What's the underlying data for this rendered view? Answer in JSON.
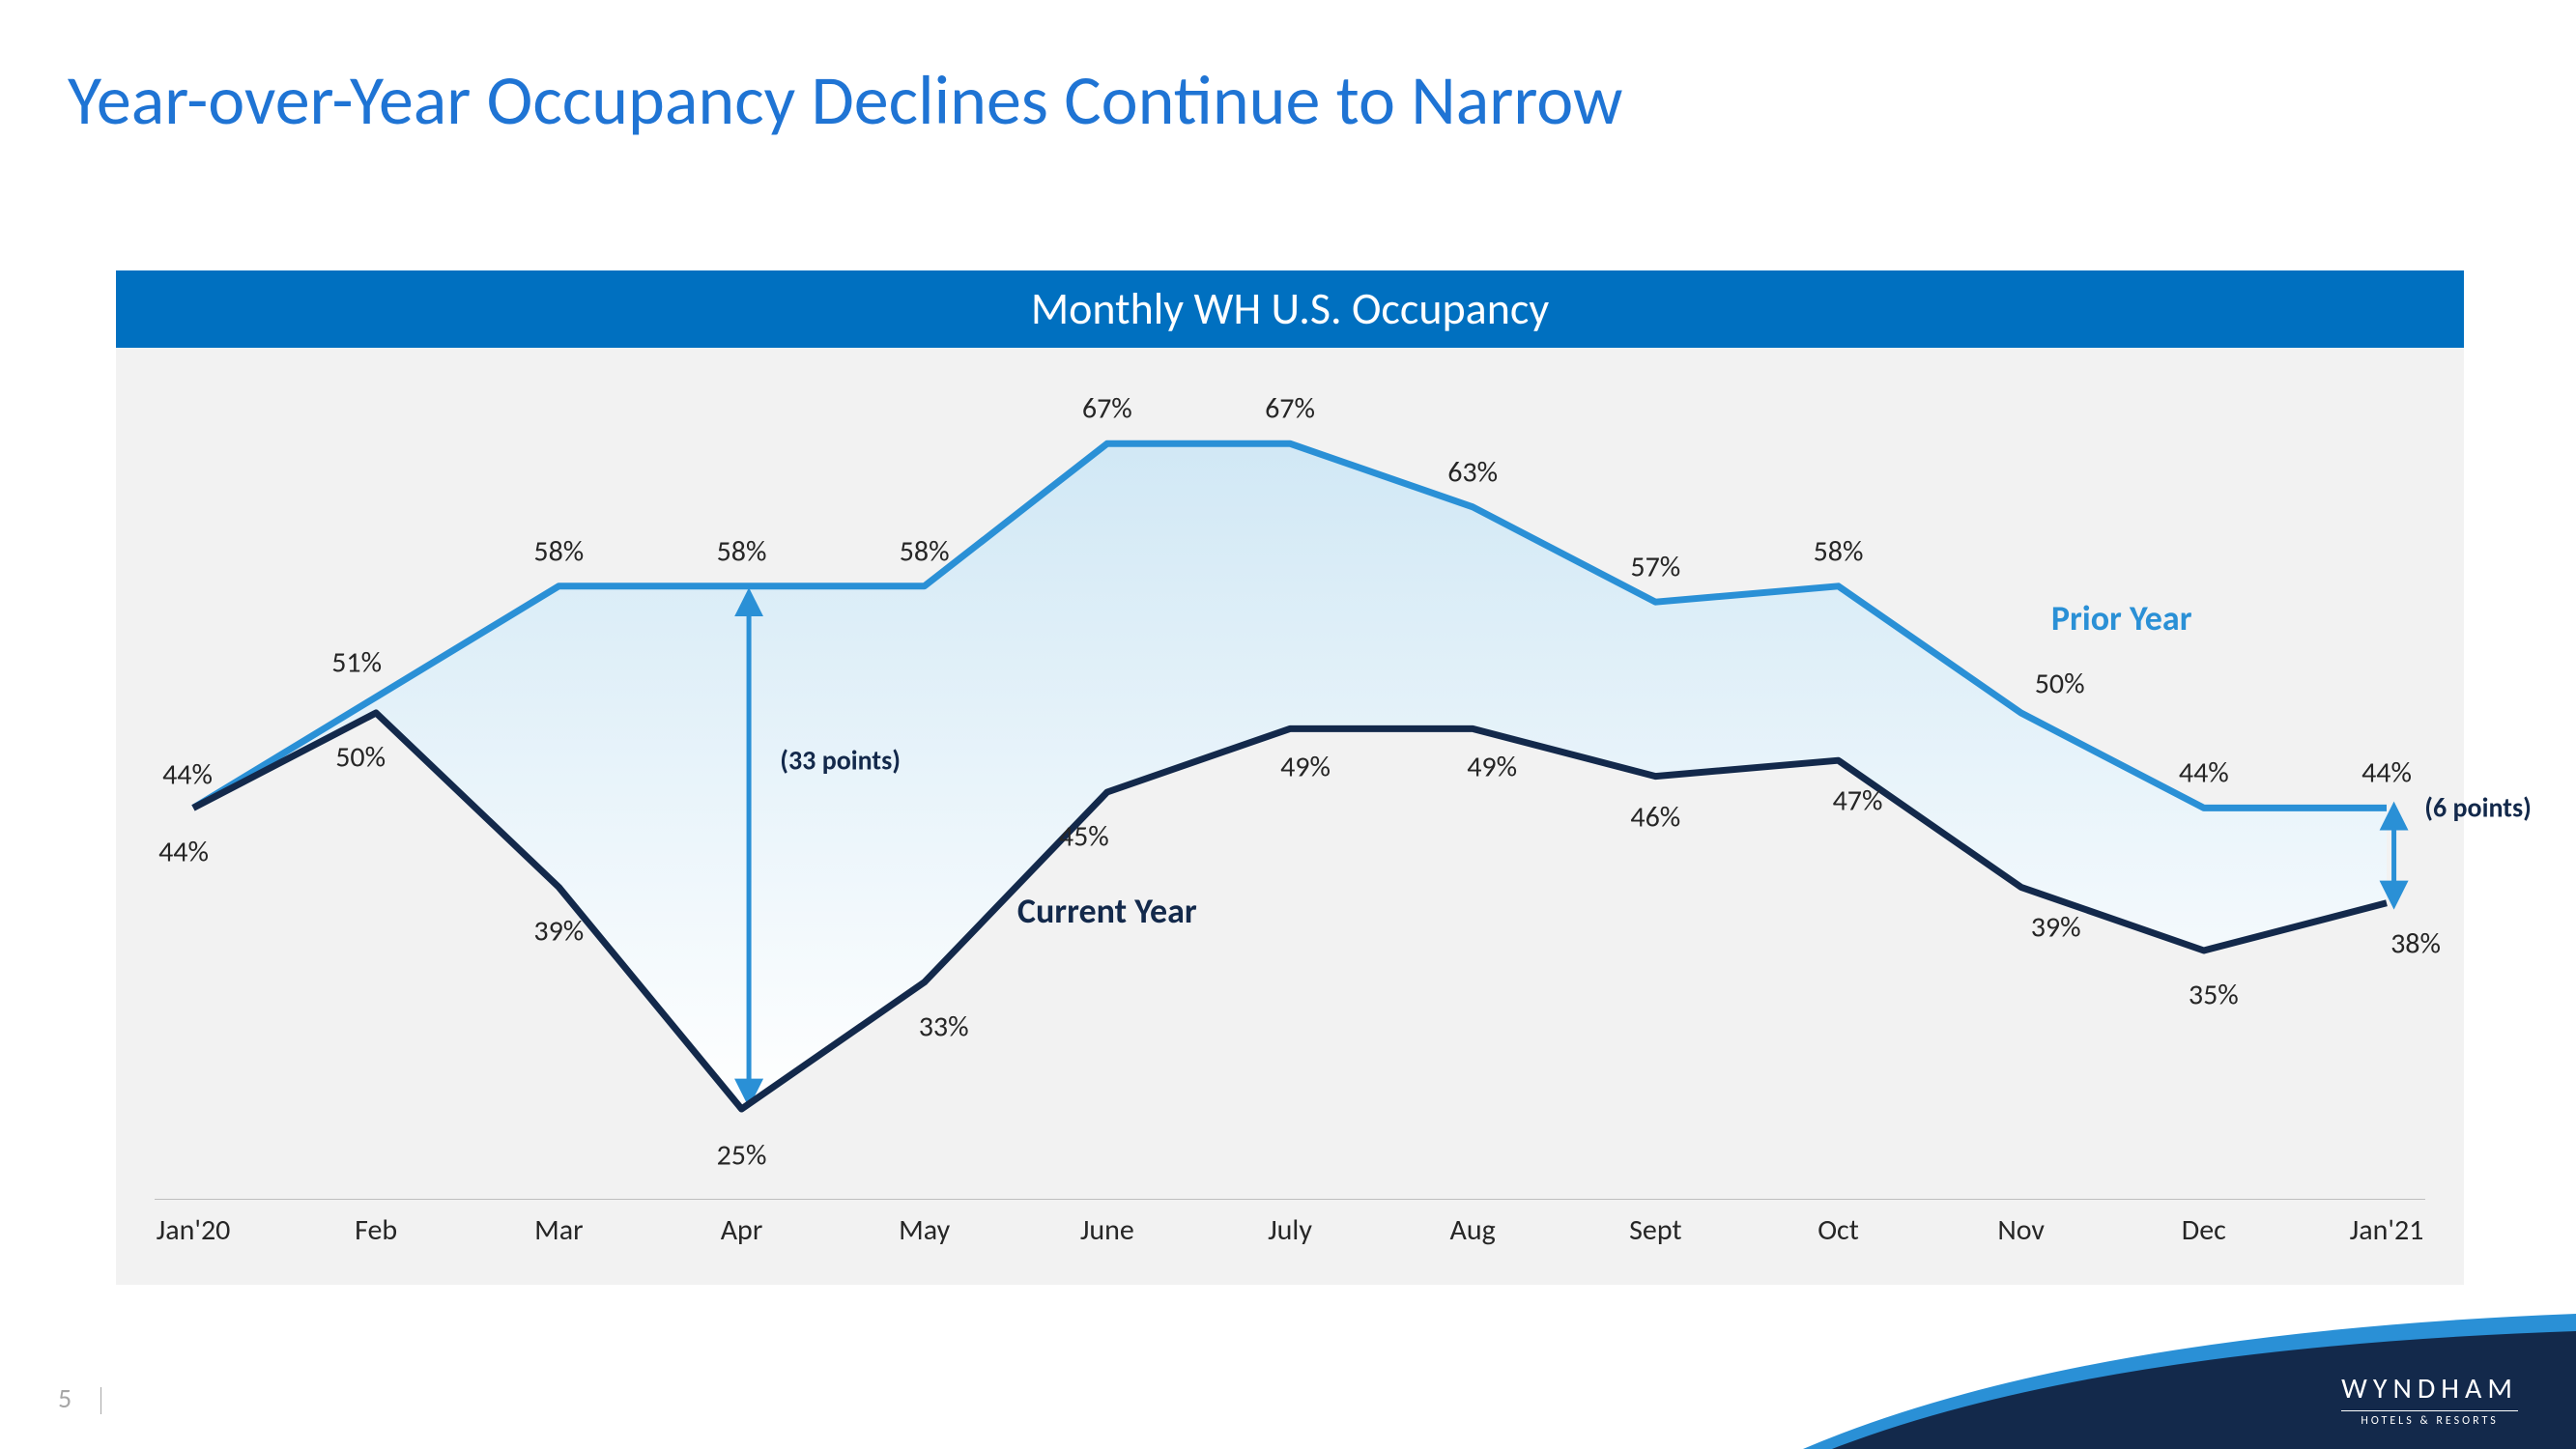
{
  "slide": {
    "title": "Year-over-Year Occupancy Declines Continue to Narrow",
    "page_number": "5",
    "title_color": "#1f74d4",
    "title_fontsize": 72
  },
  "logo": {
    "brand": "WYNDHAM",
    "tagline": "HOTELS & RESORTS",
    "swoosh_dark": "#13294b",
    "swoosh_light": "#2a90d6"
  },
  "chart": {
    "type": "line-area",
    "header": "Monthly WH U.S. Occupancy",
    "header_bg": "#0070c0",
    "header_color": "#ffffff",
    "card_bg": "#f2f2f2",
    "baseline_color": "#bfbfbf",
    "categories": [
      "Jan'20",
      "Feb",
      "Mar",
      "Apr",
      "May",
      "June",
      "July",
      "Aug",
      "Sept",
      "Oct",
      "Nov",
      "Dec",
      "Jan'21"
    ],
    "y_domain": [
      20,
      70
    ],
    "series": {
      "prior": {
        "label": "Prior Year",
        "color": "#2a90d6",
        "line_width": 7,
        "values": [
          44,
          51,
          58,
          58,
          58,
          67,
          67,
          63,
          57,
          58,
          50,
          44,
          44
        ],
        "data_labels_offset": [
          [
            -6,
            -34
          ],
          [
            -20,
            -36
          ],
          [
            0,
            -36
          ],
          [
            0,
            -36
          ],
          [
            0,
            -36
          ],
          [
            0,
            -36
          ],
          [
            0,
            -36
          ],
          [
            0,
            -36
          ],
          [
            0,
            -36
          ],
          [
            0,
            -36
          ],
          [
            40,
            -30
          ],
          [
            0,
            -36
          ],
          [
            0,
            -36
          ]
        ]
      },
      "current": {
        "label": "Current Year",
        "color": "#13294b",
        "line_width": 7,
        "values": [
          44,
          50,
          39,
          25,
          33,
          45,
          49,
          49,
          46,
          47,
          39,
          35,
          38
        ],
        "data_labels_offset": [
          [
            -10,
            46
          ],
          [
            -16,
            46
          ],
          [
            0,
            46
          ],
          [
            0,
            48
          ],
          [
            20,
            46
          ],
          [
            -24,
            46
          ],
          [
            16,
            40
          ],
          [
            20,
            40
          ],
          [
            0,
            42
          ],
          [
            20,
            42
          ],
          [
            36,
            42
          ],
          [
            10,
            46
          ],
          [
            30,
            42
          ]
        ]
      }
    },
    "fill_gradient": {
      "top": "#d1e8f5",
      "bottom": "#ffffff"
    },
    "series_label_positions": {
      "prior": {
        "x_index": 10.55,
        "y_value": 56,
        "color": "#2a90d6"
      },
      "current": {
        "x_index": 5.0,
        "y_value": 37.5,
        "color": "#13294b"
      }
    },
    "annotations": [
      {
        "text": "(33 points)",
        "x_index": 3.54,
        "y_value": 47,
        "arrow": {
          "x_index": 3.04,
          "y_from": 57,
          "y_to": 26,
          "color": "#2a90d6"
        }
      },
      {
        "text": "(6 points)",
        "x_index": 12.5,
        "y_value": 44,
        "arrow": {
          "x_index": 12.04,
          "y_from": 43.5,
          "y_to": 38.5,
          "color": "#2a90d6"
        }
      }
    ]
  }
}
